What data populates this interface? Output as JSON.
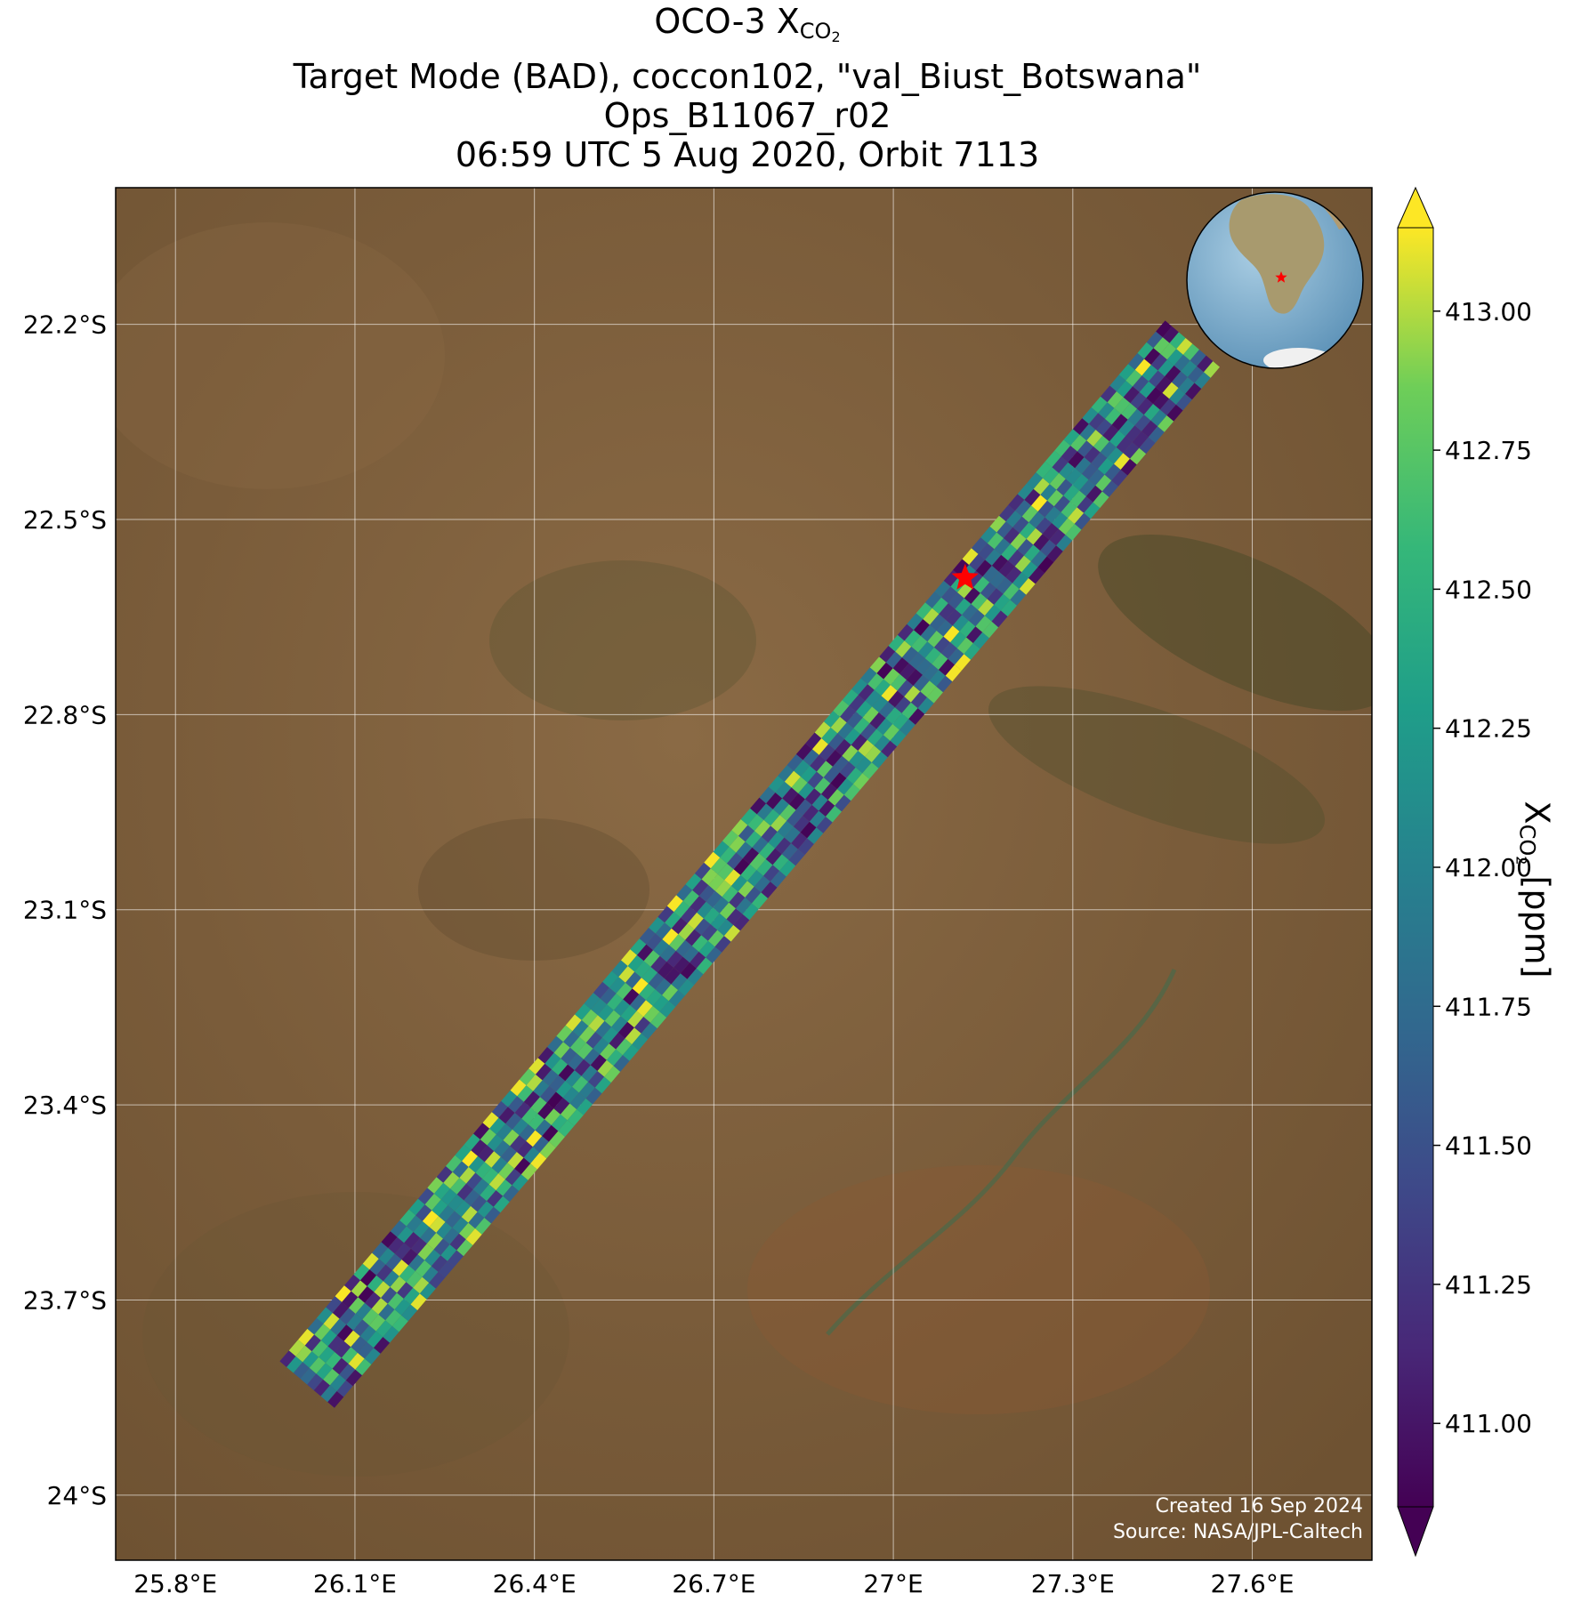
{
  "title": {
    "line1_prefix": "OCO-3 X",
    "line1_sub": "CO",
    "line1_subsub": "2",
    "line2": "Target Mode (BAD), coccon102, \"val_Biust_Botswana\"",
    "line3": "Ops_B11067_r02",
    "line4": "06:59 UTC 5 Aug 2020, Orbit 7113"
  },
  "map": {
    "lon_range": [
      25.7,
      27.8
    ],
    "lat_range": [
      -24.1,
      -21.99
    ],
    "x_ticks": [
      {
        "value": 25.8,
        "label": "25.8°E"
      },
      {
        "value": 26.1,
        "label": "26.1°E"
      },
      {
        "value": 26.4,
        "label": "26.4°E"
      },
      {
        "value": 26.7,
        "label": "26.7°E"
      },
      {
        "value": 27.0,
        "label": "27°E"
      },
      {
        "value": 27.3,
        "label": "27.3°E"
      },
      {
        "value": 27.6,
        "label": "27.6°E"
      }
    ],
    "y_ticks": [
      {
        "value": -22.2,
        "label": "22.2°S"
      },
      {
        "value": -22.5,
        "label": "22.5°S"
      },
      {
        "value": -22.8,
        "label": "22.8°S"
      },
      {
        "value": -23.1,
        "label": "23.1°S"
      },
      {
        "value": -23.4,
        "label": "23.4°S"
      },
      {
        "value": -23.7,
        "label": "23.7°S"
      },
      {
        "value": -24.0,
        "label": "24°S"
      }
    ],
    "target_site": {
      "lon": 27.12,
      "lat": -22.59,
      "color": "#ff0000"
    },
    "swath": {
      "start": {
        "lon": 26.02,
        "lat": -23.83
      },
      "end": {
        "lon": 27.5,
        "lat": -22.23
      },
      "half_width_deg": 0.06
    },
    "credits": {
      "created": "Created 16 Sep 2024",
      "source": "Source: NASA/JPL-Caltech"
    }
  },
  "colorbar": {
    "vmin": 410.85,
    "vmax": 413.15,
    "ticks": [
      "413.00",
      "412.75",
      "412.50",
      "412.25",
      "412.00",
      "411.75",
      "411.50",
      "411.25",
      "411.00"
    ],
    "label_prefix": "X",
    "label_sub": "CO",
    "label_subsub": "2",
    "label_suffix": " [ppm]",
    "colormap": "viridis",
    "extend": "both"
  }
}
